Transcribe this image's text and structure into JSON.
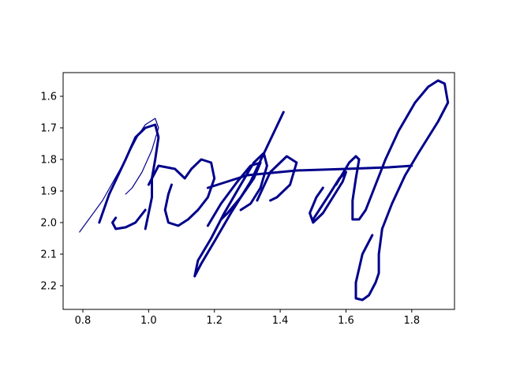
{
  "chart_data": {
    "type": "line",
    "title": "",
    "xlabel": "",
    "ylabel": "",
    "xlim": [
      0.74,
      1.93
    ],
    "ylim": [
      2.275,
      1.525
    ],
    "y_axis_inverted": true,
    "grid": false,
    "legend": "none",
    "x_ticks": [
      "0.8",
      "1.0",
      "1.2",
      "1.4",
      "1.6",
      "1.8"
    ],
    "y_ticks": [
      "1.6",
      "1.7",
      "1.8",
      "1.9",
      "2.0",
      "2.1",
      "2.2"
    ],
    "stroke_color": "#00008b",
    "series": [
      {
        "points": [
          [
            0.79,
            2.03
          ],
          [
            0.86,
            1.93
          ],
          [
            0.93,
            1.8
          ],
          [
            0.97,
            1.72
          ],
          [
            0.99,
            1.69
          ],
          [
            1.02,
            1.67
          ],
          [
            1.03,
            1.7
          ],
          [
            1.01,
            1.77
          ],
          [
            0.98,
            1.84
          ],
          [
            0.95,
            1.89
          ],
          [
            0.93,
            1.91
          ]
        ]
      },
      {
        "points": [
          [
            0.85,
            2.0
          ],
          [
            0.88,
            1.91
          ],
          [
            0.93,
            1.8
          ],
          [
            0.96,
            1.73
          ],
          [
            0.99,
            1.7
          ],
          [
            1.02,
            1.69
          ],
          [
            1.03,
            1.73
          ],
          [
            1.02,
            1.8
          ],
          [
            1.01,
            1.86
          ],
          [
            1.01,
            1.92
          ],
          [
            1.0,
            1.97
          ],
          [
            0.99,
            2.02
          ]
        ]
      },
      {
        "points": [
          [
            0.99,
            1.96
          ],
          [
            0.96,
            2.0
          ],
          [
            0.93,
            2.015
          ],
          [
            0.9,
            2.02
          ],
          [
            0.89,
            2.0
          ],
          [
            0.9,
            1.985
          ]
        ]
      },
      {
        "points": [
          [
            1.0,
            1.88
          ],
          [
            1.03,
            1.82
          ],
          [
            1.08,
            1.83
          ],
          [
            1.11,
            1.86
          ],
          [
            1.13,
            1.83
          ],
          [
            1.16,
            1.8
          ],
          [
            1.19,
            1.81
          ],
          [
            1.2,
            1.86
          ],
          [
            1.18,
            1.92
          ],
          [
            1.15,
            1.96
          ],
          [
            1.12,
            1.99
          ],
          [
            1.09,
            2.01
          ],
          [
            1.06,
            2.0
          ],
          [
            1.05,
            1.96
          ],
          [
            1.06,
            1.91
          ],
          [
            1.07,
            1.88
          ]
        ]
      },
      {
        "points": [
          [
            1.18,
            2.01
          ],
          [
            1.22,
            1.94
          ],
          [
            1.27,
            1.87
          ],
          [
            1.31,
            1.82
          ],
          [
            1.34,
            1.81
          ],
          [
            1.32,
            1.86
          ],
          [
            1.28,
            1.92
          ],
          [
            1.24,
            1.97
          ],
          [
            1.22,
            1.99
          ]
        ]
      },
      {
        "points": [
          [
            1.41,
            1.65
          ],
          [
            1.36,
            1.76
          ],
          [
            1.31,
            1.87
          ],
          [
            1.25,
            1.97
          ],
          [
            1.2,
            2.06
          ],
          [
            1.16,
            2.13
          ],
          [
            1.14,
            2.17
          ],
          [
            1.15,
            2.12
          ],
          [
            1.19,
            2.05
          ],
          [
            1.23,
            1.97
          ],
          [
            1.28,
            1.88
          ],
          [
            1.32,
            1.81
          ],
          [
            1.35,
            1.78
          ],
          [
            1.36,
            1.82
          ],
          [
            1.34,
            1.89
          ],
          [
            1.31,
            1.94
          ],
          [
            1.28,
            1.96
          ]
        ]
      },
      {
        "points": [
          [
            1.33,
            1.93
          ],
          [
            1.37,
            1.84
          ],
          [
            1.42,
            1.79
          ],
          [
            1.45,
            1.81
          ],
          [
            1.43,
            1.88
          ],
          [
            1.39,
            1.92
          ],
          [
            1.37,
            1.93
          ]
        ]
      },
      {
        "points": [
          [
            1.18,
            1.89
          ],
          [
            1.3,
            1.85
          ],
          [
            1.45,
            1.835
          ],
          [
            1.6,
            1.83
          ],
          [
            1.73,
            1.825
          ],
          [
            1.8,
            1.82
          ]
        ]
      },
      {
        "points": [
          [
            1.5,
            1.99
          ],
          [
            1.55,
            1.91
          ],
          [
            1.58,
            1.86
          ],
          [
            1.6,
            1.84
          ],
          [
            1.59,
            1.87
          ],
          [
            1.56,
            1.92
          ],
          [
            1.53,
            1.97
          ],
          [
            1.5,
            2.0
          ],
          [
            1.49,
            1.97
          ],
          [
            1.51,
            1.92
          ],
          [
            1.53,
            1.89
          ]
        ]
      },
      {
        "points": [
          [
            1.57,
            1.88
          ],
          [
            1.61,
            1.81
          ],
          [
            1.63,
            1.79
          ],
          [
            1.64,
            1.8
          ],
          [
            1.63,
            1.86
          ],
          [
            1.62,
            1.93
          ],
          [
            1.62,
            1.99
          ],
          [
            1.64,
            1.99
          ],
          [
            1.66,
            1.96
          ]
        ]
      },
      {
        "points": [
          [
            1.66,
            1.96
          ],
          [
            1.69,
            1.88
          ],
          [
            1.72,
            1.8
          ],
          [
            1.76,
            1.71
          ],
          [
            1.81,
            1.62
          ],
          [
            1.85,
            1.57
          ],
          [
            1.88,
            1.55
          ],
          [
            1.9,
            1.56
          ],
          [
            1.91,
            1.62
          ],
          [
            1.88,
            1.68
          ],
          [
            1.85,
            1.73
          ],
          [
            1.82,
            1.78
          ],
          [
            1.78,
            1.85
          ],
          [
            1.74,
            1.94
          ],
          [
            1.71,
            2.02
          ],
          [
            1.7,
            2.1
          ],
          [
            1.7,
            2.16
          ],
          [
            1.69,
            2.19
          ],
          [
            1.67,
            2.23
          ],
          [
            1.65,
            2.245
          ],
          [
            1.63,
            2.24
          ],
          [
            1.63,
            2.19
          ],
          [
            1.65,
            2.1
          ],
          [
            1.68,
            2.04
          ]
        ]
      }
    ]
  }
}
